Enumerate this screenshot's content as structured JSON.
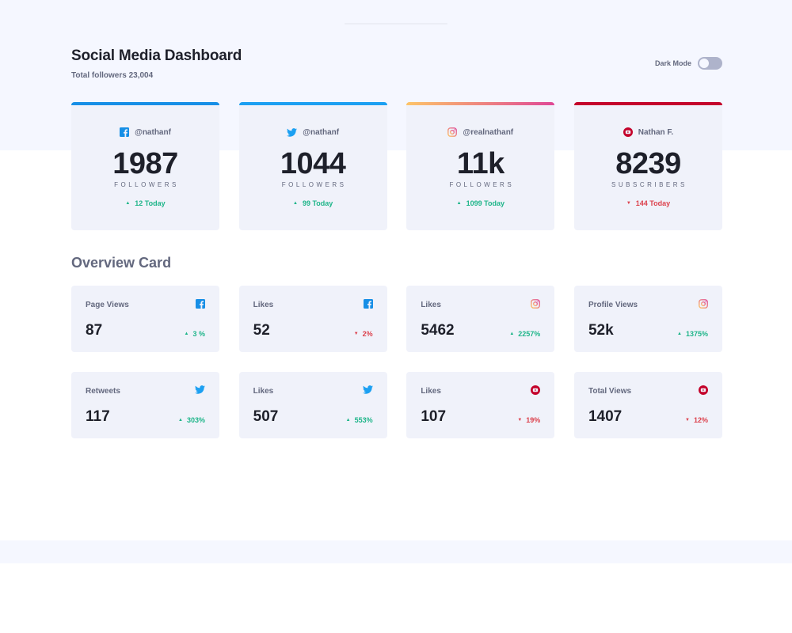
{
  "header": {
    "title": "Social Media Dashboard",
    "subtitle": "Total followers 23,004",
    "dark_mode_label": "Dark Mode"
  },
  "big_cards": [
    {
      "platform": "facebook",
      "icon": "facebook-icon",
      "handle": "@nathanf",
      "count": "1987",
      "label": "FOLLOWERS",
      "today": "12 Today",
      "trend": "up"
    },
    {
      "platform": "twitter",
      "icon": "twitter-icon",
      "handle": "@nathanf",
      "count": "1044",
      "label": "FOLLOWERS",
      "today": "99 Today",
      "trend": "up"
    },
    {
      "platform": "instagram",
      "icon": "instagram-icon",
      "handle": "@realnathanf",
      "count": "11k",
      "label": "FOLLOWERS",
      "today": "1099 Today",
      "trend": "up"
    },
    {
      "platform": "youtube",
      "icon": "youtube-icon",
      "handle": "Nathan F.",
      "count": "8239",
      "label": "SUBSCRIBERS",
      "today": "144 Today",
      "trend": "down"
    }
  ],
  "overview": {
    "title": "Overview Card",
    "cards": [
      {
        "label": "Page Views",
        "icon": "facebook-icon",
        "value": "87",
        "change": "3 %",
        "trend": "up"
      },
      {
        "label": "Likes",
        "icon": "facebook-icon",
        "value": "52",
        "change": "2%",
        "trend": "down"
      },
      {
        "label": "Likes",
        "icon": "instagram-icon",
        "value": "5462",
        "change": "2257%",
        "trend": "up"
      },
      {
        "label": "Profile Views",
        "icon": "instagram-icon",
        "value": "52k",
        "change": "1375%",
        "trend": "up"
      },
      {
        "label": "Retweets",
        "icon": "twitter-icon",
        "value": "117",
        "change": "303%",
        "trend": "up"
      },
      {
        "label": "Likes",
        "icon": "twitter-icon",
        "value": "507",
        "change": "553%",
        "trend": "up"
      },
      {
        "label": "Likes",
        "icon": "youtube-icon",
        "value": "107",
        "change": "19%",
        "trend": "down"
      },
      {
        "label": "Total Views",
        "icon": "youtube-icon",
        "value": "1407",
        "change": "12%",
        "trend": "down"
      }
    ]
  },
  "colors": {
    "facebook": "#178fe6",
    "twitter": "#1ca0f2",
    "instagram_start": "#fdc468",
    "instagram_end": "#df4996",
    "youtube": "#c4032b",
    "up": "#1eb589",
    "down": "#dc414c"
  }
}
